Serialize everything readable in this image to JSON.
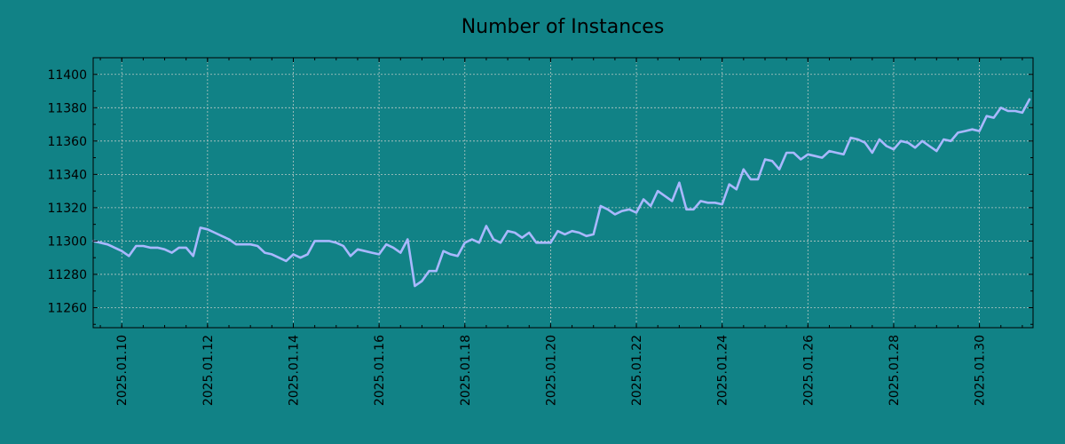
{
  "chart_data": {
    "type": "line",
    "title": "Number of Instances",
    "xlabel": "",
    "ylabel": "",
    "x_range": [
      "2025-01-09 08:00",
      "2025-01-31 06:00"
    ],
    "ylim": [
      11248,
      11410
    ],
    "grid": true,
    "colors": {
      "background": "#118286",
      "line": "#a9b8ff",
      "grid": "#b9c9c5"
    },
    "x_ticks": [
      "2025.01.10",
      "2025.01.12",
      "2025.01.14",
      "2025.01.16",
      "2025.01.18",
      "2025.01.20",
      "2025.01.22",
      "2025.01.24",
      "2025.01.26",
      "2025.01.28",
      "2025.01.30"
    ],
    "y_ticks": [
      "11260",
      "11280",
      "11300",
      "11320",
      "11340",
      "11360",
      "11380",
      "11400"
    ],
    "series": [
      {
        "x": [
          "2025-01-09 08:00",
          "2025-01-09 12:00",
          "2025-01-09 16:00",
          "2025-01-09 20:00",
          "2025-01-10 00:00",
          "2025-01-10 04:00",
          "2025-01-10 08:00",
          "2025-01-10 12:00",
          "2025-01-10 16:00",
          "2025-01-10 20:00",
          "2025-01-11 00:00",
          "2025-01-11 04:00",
          "2025-01-11 08:00",
          "2025-01-11 12:00",
          "2025-01-11 16:00",
          "2025-01-11 20:00",
          "2025-01-12 00:00",
          "2025-01-12 04:00",
          "2025-01-12 08:00",
          "2025-01-12 12:00",
          "2025-01-12 16:00",
          "2025-01-12 20:00",
          "2025-01-13 00:00",
          "2025-01-13 04:00",
          "2025-01-13 08:00",
          "2025-01-13 12:00",
          "2025-01-13 16:00",
          "2025-01-13 20:00",
          "2025-01-14 00:00",
          "2025-01-14 04:00",
          "2025-01-14 08:00",
          "2025-01-14 12:00",
          "2025-01-14 16:00",
          "2025-01-14 20:00",
          "2025-01-15 00:00",
          "2025-01-15 04:00",
          "2025-01-15 08:00",
          "2025-01-15 12:00",
          "2025-01-15 16:00",
          "2025-01-15 20:00",
          "2025-01-16 00:00",
          "2025-01-16 04:00",
          "2025-01-16 08:00",
          "2025-01-16 12:00",
          "2025-01-16 16:00",
          "2025-01-16 20:00",
          "2025-01-17 00:00",
          "2025-01-17 04:00",
          "2025-01-17 08:00",
          "2025-01-17 12:00",
          "2025-01-17 16:00",
          "2025-01-17 20:00",
          "2025-01-18 00:00",
          "2025-01-18 04:00",
          "2025-01-18 08:00",
          "2025-01-18 12:00",
          "2025-01-18 16:00",
          "2025-01-18 20:00",
          "2025-01-19 00:00",
          "2025-01-19 04:00",
          "2025-01-19 08:00",
          "2025-01-19 12:00",
          "2025-01-19 16:00",
          "2025-01-19 20:00",
          "2025-01-20 00:00",
          "2025-01-20 04:00",
          "2025-01-20 08:00",
          "2025-01-20 12:00",
          "2025-01-20 16:00",
          "2025-01-20 20:00",
          "2025-01-21 00:00",
          "2025-01-21 04:00",
          "2025-01-21 08:00",
          "2025-01-21 12:00",
          "2025-01-21 16:00",
          "2025-01-21 20:00",
          "2025-01-22 00:00",
          "2025-01-22 04:00",
          "2025-01-22 08:00",
          "2025-01-22 12:00",
          "2025-01-22 16:00",
          "2025-01-22 20:00",
          "2025-01-23 00:00",
          "2025-01-23 04:00",
          "2025-01-23 08:00",
          "2025-01-23 12:00",
          "2025-01-23 16:00",
          "2025-01-23 20:00",
          "2025-01-24 00:00",
          "2025-01-24 04:00",
          "2025-01-24 08:00",
          "2025-01-24 12:00",
          "2025-01-24 16:00",
          "2025-01-24 20:00",
          "2025-01-25 00:00",
          "2025-01-25 04:00",
          "2025-01-25 08:00",
          "2025-01-25 12:00",
          "2025-01-25 16:00",
          "2025-01-25 20:00",
          "2025-01-26 00:00",
          "2025-01-26 04:00",
          "2025-01-26 08:00",
          "2025-01-26 12:00",
          "2025-01-26 16:00",
          "2025-01-26 20:00",
          "2025-01-27 00:00",
          "2025-01-27 04:00",
          "2025-01-27 08:00",
          "2025-01-27 12:00",
          "2025-01-27 16:00",
          "2025-01-27 20:00",
          "2025-01-28 00:00",
          "2025-01-28 04:00",
          "2025-01-28 08:00",
          "2025-01-28 12:00",
          "2025-01-28 16:00",
          "2025-01-28 20:00",
          "2025-01-29 00:00",
          "2025-01-29 04:00",
          "2025-01-29 08:00",
          "2025-01-29 12:00",
          "2025-01-29 16:00",
          "2025-01-29 20:00",
          "2025-01-30 00:00",
          "2025-01-30 04:00",
          "2025-01-30 08:00",
          "2025-01-30 12:00",
          "2025-01-30 16:00",
          "2025-01-30 20:00",
          "2025-01-31 00:00",
          "2025-01-31 04:00"
        ],
        "values": [
          11300,
          11299,
          11298,
          11296,
          11294,
          11291,
          11297,
          11297,
          11296,
          11296,
          11295,
          11293,
          11296,
          11296,
          11291,
          11308,
          11307,
          11305,
          11303,
          11301,
          11298,
          11298,
          11298,
          11297,
          11293,
          11292,
          11290,
          11288,
          11292,
          11290,
          11292,
          11300,
          11300,
          11300,
          11299,
          11297,
          11291,
          11295,
          11294,
          11293,
          11292,
          11298,
          11296,
          11293,
          11301,
          11273,
          11276,
          11282,
          11282,
          11294,
          11292,
          11291,
          11299,
          11301,
          11299,
          11309,
          11301,
          11299,
          11306,
          11305,
          11302,
          11305,
          11299,
          11299,
          11299,
          11306,
          11304,
          11306,
          11305,
          11303,
          11304,
          11321,
          11319,
          11316,
          11318,
          11319,
          11317,
          11325,
          11321,
          11330,
          11327,
          11324,
          11335,
          11319,
          11319,
          11324,
          11323,
          11323,
          11322,
          11334,
          11331,
          11343,
          11337,
          11337,
          11349,
          11348,
          11343,
          11353,
          11353,
          11349,
          11352,
          11351,
          11350,
          11354,
          11353,
          11352,
          11362,
          11361,
          11359,
          11353,
          11361,
          11357,
          11355,
          11360,
          11359,
          11356,
          11360,
          11357,
          11354,
          11361,
          11360,
          11365,
          11366,
          11367,
          11366,
          11375,
          11374,
          11380,
          11378,
          11378,
          11377,
          11385
        ]
      }
    ]
  }
}
